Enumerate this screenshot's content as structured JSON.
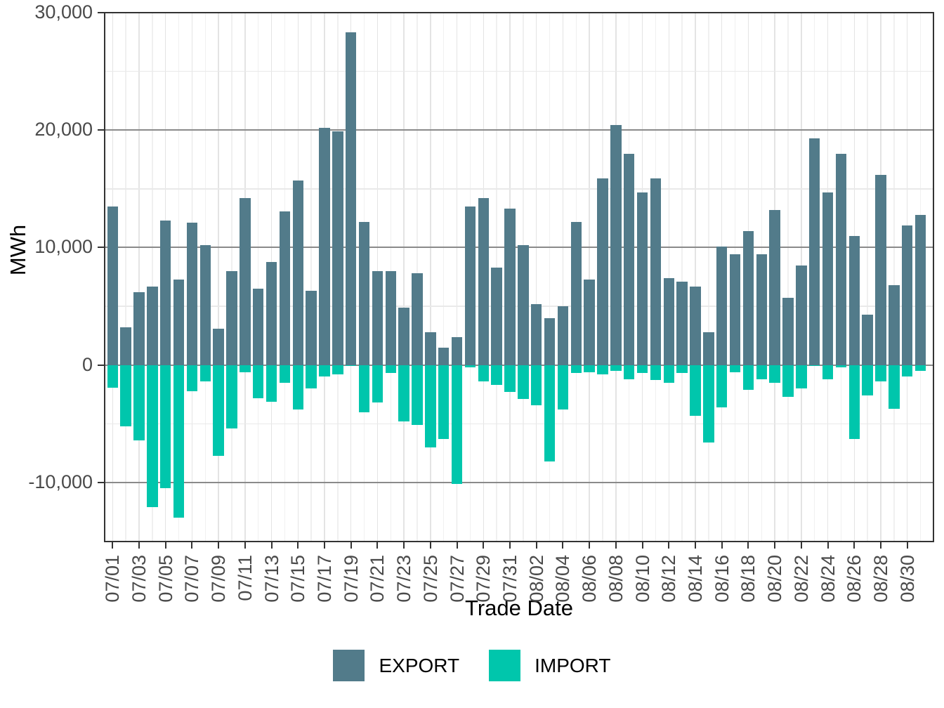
{
  "chart_data": {
    "type": "bar",
    "title": "",
    "xlabel": "Trade Date",
    "ylabel": "MWh",
    "ylim": [
      -15000,
      30000
    ],
    "grid": true,
    "legend_position": "bottom",
    "categories": [
      "07/01",
      "07/02",
      "07/03",
      "07/04",
      "07/05",
      "07/06",
      "07/07",
      "07/08",
      "07/09",
      "07/10",
      "07/11",
      "07/12",
      "07/13",
      "07/14",
      "07/15",
      "07/16",
      "07/17",
      "07/18",
      "07/19",
      "07/20",
      "07/21",
      "07/22",
      "07/23",
      "07/24",
      "07/25",
      "07/26",
      "07/27",
      "07/28",
      "07/29",
      "07/30",
      "07/31",
      "08/01",
      "08/02",
      "08/03",
      "08/04",
      "08/05",
      "08/06",
      "08/07",
      "08/08",
      "08/09",
      "08/10",
      "08/11",
      "08/12",
      "08/13",
      "08/14",
      "08/15",
      "08/16",
      "08/17",
      "08/18",
      "08/19",
      "08/20",
      "08/21",
      "08/22",
      "08/23",
      "08/24",
      "08/25",
      "08/26",
      "08/27",
      "08/28",
      "08/29",
      "08/30",
      "08/31"
    ],
    "series": [
      {
        "name": "EXPORT",
        "color": "#527B8A",
        "values": [
          13500,
          3200,
          6200,
          6700,
          12300,
          7300,
          12100,
          10200,
          3100,
          8000,
          14200,
          6500,
          8800,
          13100,
          15700,
          6300,
          20200,
          19900,
          28300,
          12200,
          8000,
          8000,
          4900,
          7800,
          2800,
          1500,
          2400,
          13500,
          14200,
          8300,
          13300,
          10200,
          5200,
          4000,
          5000,
          12200,
          7300,
          15900,
          20400,
          18000,
          14700,
          15900,
          7400,
          7100,
          6700,
          2800,
          10100,
          9400,
          11400,
          9400,
          13200,
          5700,
          8500,
          19300,
          14700,
          18000,
          11000,
          4300,
          16200,
          6800,
          11900,
          12800
        ]
      },
      {
        "name": "IMPORT",
        "color": "#00C6AC",
        "values": [
          -1900,
          -5200,
          -6400,
          -12100,
          -10500,
          -13000,
          -2200,
          -1400,
          -7700,
          -5400,
          -600,
          -2800,
          -3100,
          -1500,
          -3800,
          -2000,
          -1000,
          -800,
          -100,
          -4000,
          -3200,
          -700,
          -4800,
          -5100,
          -7000,
          -6300,
          -10100,
          -200,
          -1400,
          -1700,
          -2300,
          -2900,
          -3400,
          -8200,
          -3800,
          -700,
          -600,
          -800,
          -500,
          -1200,
          -700,
          -1300,
          -1500,
          -700,
          -4300,
          -6600,
          -3600,
          -600,
          -2100,
          -1200,
          -1500,
          -2700,
          -2000,
          -100,
          -1200,
          -200,
          -6300,
          -2600,
          -1400,
          -3700,
          -1000,
          -500
        ]
      }
    ],
    "y_major_ticks": [
      30000,
      20000,
      10000,
      0,
      -10000
    ],
    "y_tick_labels": [
      "30,000",
      "20,000",
      "10,000",
      "0",
      "-10,000"
    ],
    "y_minor_ticks": [
      25000,
      15000,
      5000,
      -5000
    ],
    "x_tick_labels": [
      "07/01",
      "07/03",
      "07/05",
      "07/07",
      "07/09",
      "07/11",
      "07/13",
      "07/15",
      "07/17",
      "07/19",
      "07/21",
      "07/23",
      "07/25",
      "07/27",
      "07/29",
      "07/31",
      "08/02",
      "08/04",
      "08/06",
      "08/08",
      "08/10",
      "08/12",
      "08/14",
      "08/16",
      "08/18",
      "08/20",
      "08/22",
      "08/24",
      "08/26",
      "08/28",
      "08/30"
    ]
  },
  "axes": {
    "x_title": "Trade Date",
    "y_title": "MWh"
  },
  "legend": {
    "items": [
      {
        "label": "EXPORT",
        "color": "#527B8A"
      },
      {
        "label": "IMPORT",
        "color": "#00C6AC"
      }
    ]
  },
  "colors": {
    "export": "#527B8A",
    "import": "#00C6AC",
    "grid_major": "#8a8a8a",
    "grid_minor": "#e9e9e9",
    "axis": "#333333",
    "tick_text": "#4a4a4a"
  }
}
